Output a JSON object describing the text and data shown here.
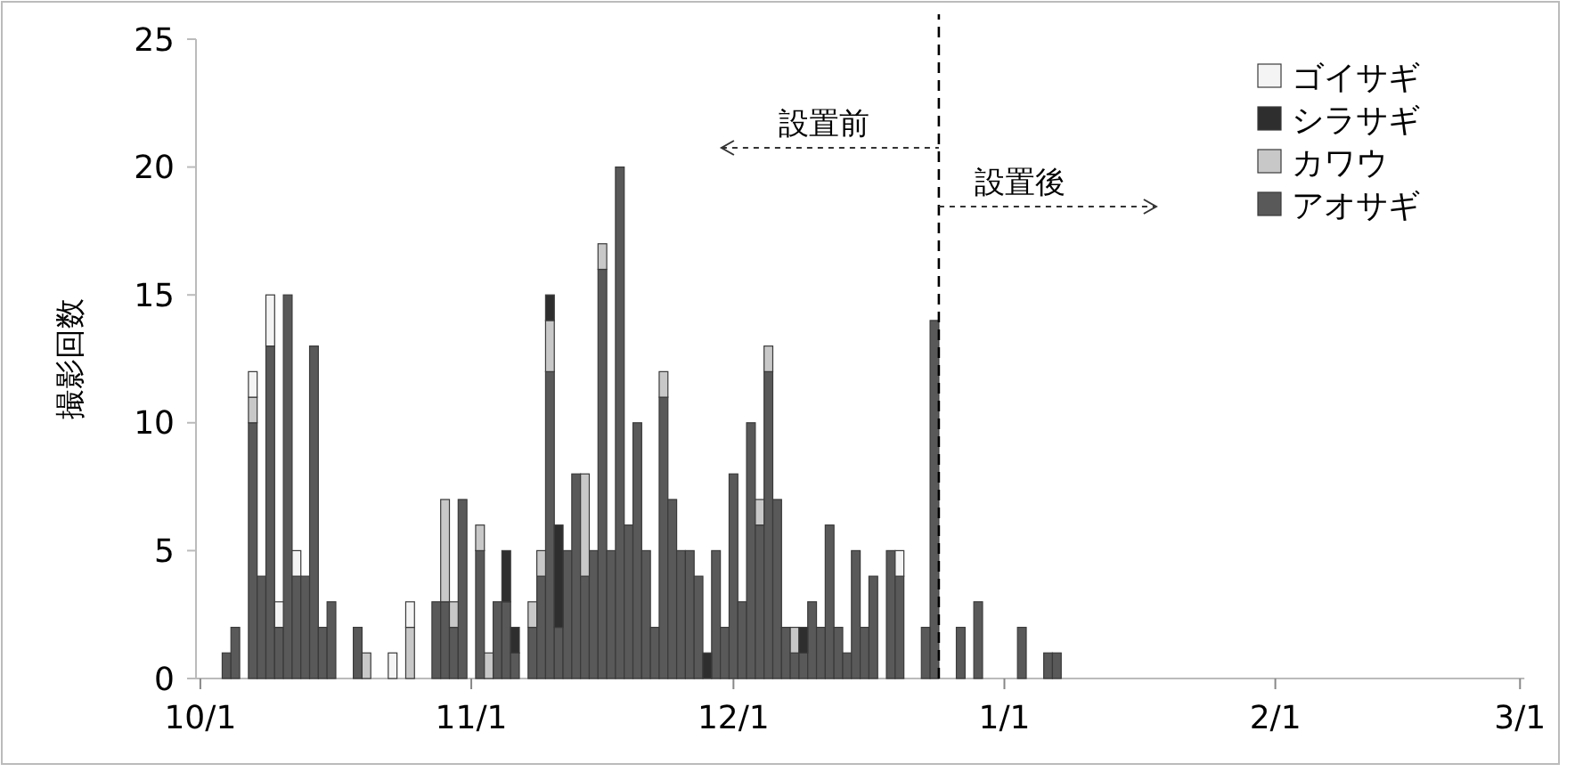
{
  "chart_data": {
    "type": "bar",
    "stacked": true,
    "ylabel": "撮影回数",
    "categories": [
      "10/1",
      null,
      null,
      null,
      null,
      null,
      null,
      null,
      null,
      null,
      null,
      null,
      null,
      null,
      null,
      null,
      null,
      null,
      null,
      null,
      null,
      null,
      null,
      null,
      null,
      null,
      null,
      null,
      null,
      null,
      null,
      "11/1",
      null,
      null,
      null,
      null,
      null,
      null,
      null,
      null,
      null,
      null,
      null,
      null,
      null,
      null,
      null,
      null,
      null,
      null,
      null,
      null,
      null,
      null,
      null,
      null,
      null,
      null,
      null,
      null,
      null,
      "12/1",
      null,
      null,
      null,
      null,
      null,
      null,
      null,
      null,
      null,
      null,
      null,
      null,
      null,
      null,
      null,
      null,
      null,
      null,
      null,
      null,
      null,
      null,
      null,
      null,
      null,
      null,
      null,
      null,
      null,
      null,
      "1/1",
      null,
      null,
      null,
      null,
      null,
      null,
      null,
      null,
      null,
      null,
      null,
      null,
      null,
      null,
      null,
      null,
      null,
      null,
      null,
      null,
      null,
      null,
      null,
      null,
      null,
      null,
      null,
      null,
      null,
      null,
      "2/1",
      null,
      null,
      null,
      null,
      null,
      null,
      null,
      null,
      null,
      null,
      null,
      null,
      null,
      null,
      null,
      null,
      null,
      null,
      null,
      null,
      null,
      null,
      null,
      null,
      null,
      null,
      null,
      "3/1"
    ],
    "series": [
      {
        "name": "アオサギ",
        "color": "#595959",
        "values": [
          0,
          0,
          0,
          1,
          2,
          0,
          10,
          4,
          13,
          2,
          15,
          4,
          4,
          13,
          2,
          3,
          0,
          0,
          2,
          0,
          0,
          0,
          0,
          0,
          0,
          0,
          0,
          3,
          3,
          2,
          7,
          0,
          5,
          0,
          3,
          3,
          1,
          0,
          2,
          4,
          12,
          2,
          5,
          8,
          4,
          5,
          16,
          5,
          20,
          6,
          10,
          5,
          2,
          11,
          7,
          5,
          5,
          4,
          0,
          5,
          2,
          8,
          3,
          10,
          6,
          12,
          7,
          2,
          1,
          1,
          3,
          2,
          6,
          2,
          1,
          5,
          2,
          4,
          0,
          5,
          4,
          0,
          0,
          2,
          14,
          0,
          0,
          2,
          0,
          3,
          0,
          0,
          0,
          0,
          2,
          0,
          0,
          1,
          1,
          0,
          0,
          0,
          0,
          0,
          0,
          0,
          0,
          0,
          0,
          0,
          0,
          0,
          0,
          0,
          0,
          0,
          0,
          0,
          0,
          0,
          0,
          0,
          0,
          0,
          0,
          0,
          0,
          0,
          0,
          0,
          0,
          0,
          0,
          0,
          0,
          0,
          0,
          0,
          0,
          0,
          0,
          0,
          0,
          0,
          0,
          0,
          0,
          0,
          0,
          0,
          0,
          0
        ]
      },
      {
        "name": "カワウ",
        "color": "#c8c8c8",
        "values": [
          0,
          0,
          0,
          0,
          0,
          0,
          1,
          0,
          0,
          0,
          0,
          0,
          0,
          0,
          0,
          0,
          0,
          0,
          0,
          1,
          0,
          0,
          0,
          0,
          2,
          0,
          0,
          0,
          4,
          1,
          0,
          0,
          1,
          1,
          0,
          0,
          0,
          0,
          1,
          1,
          2,
          0,
          0,
          0,
          4,
          0,
          1,
          0,
          0,
          0,
          0,
          0,
          0,
          1,
          0,
          0,
          0,
          0,
          0,
          0,
          0,
          0,
          0,
          0,
          1,
          1,
          0,
          0,
          1,
          0,
          0,
          0,
          0,
          0,
          0,
          0,
          0,
          0,
          0,
          0,
          0,
          0,
          0,
          0,
          0,
          0,
          0,
          0,
          0,
          0,
          0,
          0,
          0,
          0,
          0,
          0,
          0,
          0,
          0,
          0,
          0,
          0,
          0,
          0,
          0,
          0,
          0,
          0,
          0,
          0,
          0,
          0,
          0,
          0,
          0,
          0,
          0,
          0,
          0,
          0,
          0,
          0,
          0,
          0,
          0,
          0,
          0,
          0,
          0,
          0,
          0,
          0,
          0,
          0,
          0,
          0,
          0,
          0,
          0,
          0,
          0,
          0,
          0,
          0,
          0,
          0,
          0,
          0,
          0,
          0,
          0,
          0
        ]
      },
      {
        "name": "シラサギ",
        "color": "#2e2e2e",
        "values": [
          0,
          0,
          0,
          0,
          0,
          0,
          0,
          0,
          0,
          0,
          0,
          0,
          0,
          0,
          0,
          0,
          0,
          0,
          0,
          0,
          0,
          0,
          0,
          0,
          0,
          0,
          0,
          0,
          0,
          0,
          0,
          0,
          0,
          0,
          0,
          2,
          1,
          0,
          0,
          0,
          1,
          4,
          0,
          0,
          0,
          0,
          0,
          0,
          0,
          0,
          0,
          0,
          0,
          0,
          0,
          0,
          0,
          0,
          1,
          0,
          0,
          0,
          0,
          0,
          0,
          0,
          0,
          0,
          0,
          1,
          0,
          0,
          0,
          0,
          0,
          0,
          0,
          0,
          0,
          0,
          0,
          0,
          0,
          0,
          0,
          0,
          0,
          0,
          0,
          0,
          0,
          0,
          0,
          0,
          0,
          0,
          0,
          0,
          0,
          0,
          0,
          0,
          0,
          0,
          0,
          0,
          0,
          0,
          0,
          0,
          0,
          0,
          0,
          0,
          0,
          0,
          0,
          0,
          0,
          0,
          0,
          0,
          0,
          0,
          0,
          0,
          0,
          0,
          0,
          0,
          0,
          0,
          0,
          0,
          0,
          0,
          0,
          0,
          0,
          0,
          0,
          0,
          0,
          0,
          0,
          0,
          0,
          0,
          0,
          0,
          0,
          0
        ]
      },
      {
        "name": "ゴイサギ",
        "color": "#f4f4f4",
        "values": [
          0,
          0,
          0,
          0,
          0,
          0,
          1,
          0,
          2,
          1,
          0,
          1,
          0,
          0,
          0,
          0,
          0,
          0,
          0,
          0,
          0,
          0,
          1,
          0,
          1,
          0,
          0,
          0,
          0,
          0,
          0,
          0,
          0,
          0,
          0,
          0,
          0,
          0,
          0,
          0,
          0,
          0,
          0,
          0,
          0,
          0,
          0,
          0,
          0,
          0,
          0,
          0,
          0,
          0,
          0,
          0,
          0,
          0,
          0,
          0,
          0,
          0,
          0,
          0,
          0,
          0,
          0,
          0,
          0,
          0,
          0,
          0,
          0,
          0,
          0,
          0,
          0,
          0,
          0,
          0,
          1,
          0,
          0,
          0,
          0,
          0,
          0,
          0,
          0,
          0,
          0,
          0,
          0,
          0,
          0,
          0,
          0,
          0,
          0,
          0,
          0,
          0,
          0,
          0,
          0,
          0,
          0,
          0,
          0,
          0,
          0,
          0,
          0,
          0,
          0,
          0,
          0,
          0,
          0,
          0,
          0,
          0,
          0,
          0,
          0,
          0,
          0,
          0,
          0,
          0,
          0,
          0,
          0,
          0,
          0,
          0,
          0,
          0,
          0,
          0,
          0,
          0,
          0,
          0,
          0,
          0,
          0,
          0,
          0,
          0,
          0,
          0
        ]
      }
    ],
    "ylim": [
      0,
      25
    ],
    "yticks": [
      0,
      5,
      10,
      15,
      20,
      25
    ],
    "annotations": [
      "設置前",
      "設置後"
    ],
    "legend": "top right",
    "grid": false
  }
}
